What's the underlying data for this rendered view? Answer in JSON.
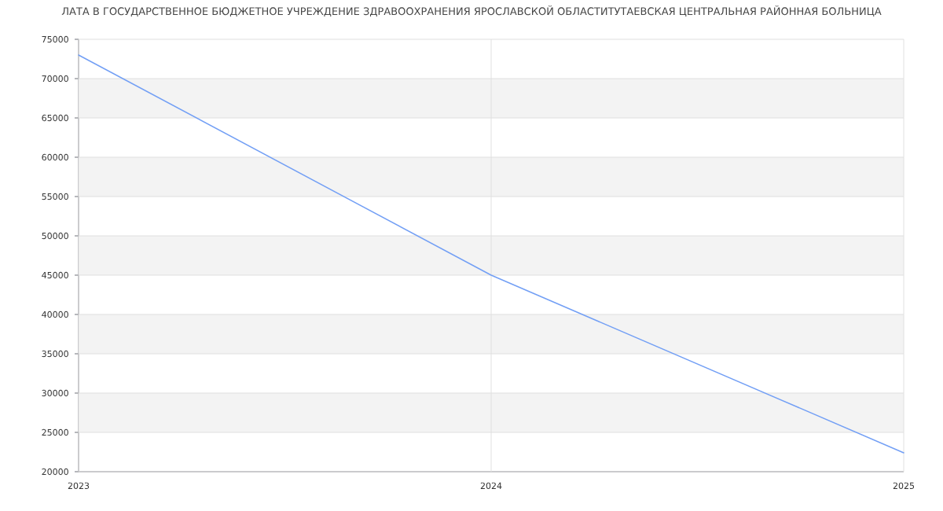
{
  "chart_data": {
    "type": "line",
    "title": "ЛАТА В ГОСУДАРСТВЕННОЕ БЮДЖЕТНОЕ УЧРЕЖДЕНИЕ ЗДРАВООХРАНЕНИЯ ЯРОСЛАВСКОЙ ОБЛАСТИТУТАЕВСКАЯ ЦЕНТРАЛЬНАЯ РАЙОННАЯ БОЛЬНИЦА",
    "x": [
      2023,
      2024,
      2025
    ],
    "values": [
      73000,
      45000,
      22400
    ],
    "color": "#729ff5",
    "line_style": "solid",
    "xlim": [
      2023,
      2025
    ],
    "xticks": [
      2023,
      2024,
      2025
    ],
    "ylim": [
      20000,
      75000
    ],
    "yticks": [
      20000,
      25000,
      30000,
      35000,
      40000,
      45000,
      50000,
      55000,
      60000,
      65000,
      70000,
      75000
    ],
    "grid": true
  }
}
